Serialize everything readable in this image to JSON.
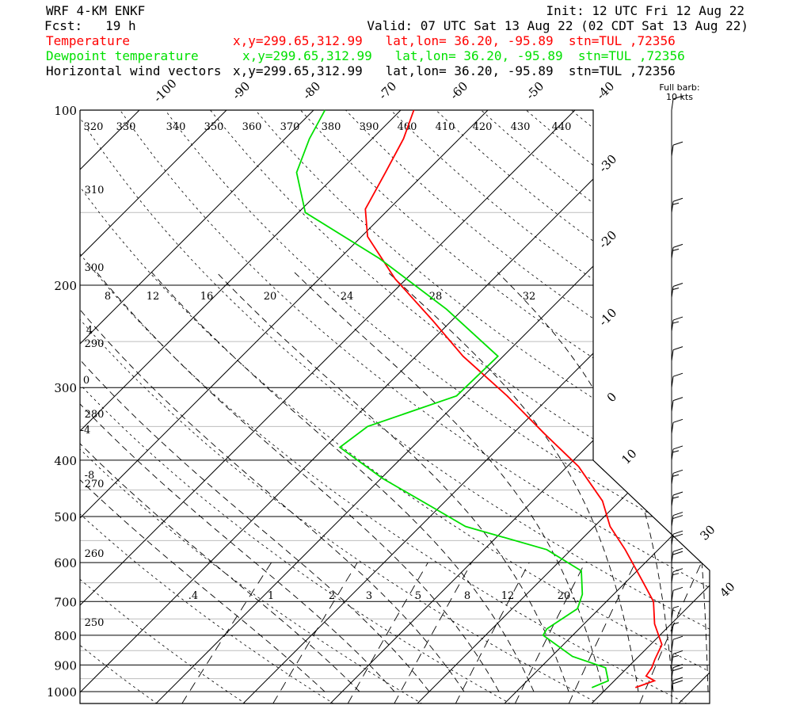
{
  "header": {
    "model": "WRF 4-KM ENKF",
    "fcst": "Fcst:   19 h",
    "init": "Init: 12 UTC Fri 12 Aug 22",
    "valid": "Valid: 07 UTC Sat 13 Aug 22 (02 CDT Sat 13 Aug 22)",
    "legend": [
      {
        "name": "Temperature",
        "info": "x,y=299.65,312.99   lat,lon= 36.20, -95.89  stn=TUL ,72356",
        "color": "#ff0000"
      },
      {
        "name": "Dewpoint temperature",
        "info": "x,y=299.65,312.99   lat,lon= 36.20, -95.89  stn=TUL ,72356",
        "color": "#00e000"
      },
      {
        "name": "Horizontal wind vectors",
        "info": "x,y=299.65,312.99   lat,lon= 36.20, -95.89  stn=TUL ,72356",
        "color": "#000000"
      }
    ],
    "barb_note_1": "Full barb:",
    "barb_note_2": "10 kts"
  },
  "chart_data": {
    "type": "skew-t log-p sounding",
    "pressure_axis": {
      "label_values": [
        100,
        200,
        300,
        400,
        500,
        600,
        700,
        800,
        900,
        1000
      ],
      "range_hPa": [
        1000,
        100
      ],
      "scale": "log"
    },
    "isotherm_labels": [
      "-100",
      "-90",
      "-80",
      "-70",
      "-60",
      "-50",
      "-40",
      "-30",
      "-20",
      "-10",
      "0",
      "10",
      "20",
      "30",
      "40"
    ],
    "dry_adiabat_labels": [
      "320",
      "330",
      "340",
      "350",
      "360",
      "370",
      "380",
      "390",
      "400",
      "410",
      "420",
      "430",
      "440",
      "310",
      "300",
      "290",
      "280",
      "270",
      "260",
      "250"
    ],
    "moist_adiabat_labels": [
      "8",
      "12",
      "16",
      "20",
      "24",
      "28",
      "32",
      "4",
      "0",
      "-4",
      "-8"
    ],
    "mixing_ratio_labels": [
      ".4",
      "1",
      "2",
      "3",
      "5",
      "8",
      "12",
      "20"
    ],
    "series": [
      {
        "name": "Temperature",
        "color": "#ff0000",
        "points_pT": [
          [
            984,
            23.2
          ],
          [
            958,
            24.6
          ],
          [
            940,
            23.1
          ],
          [
            910,
            22.8
          ],
          [
            880,
            22.2
          ],
          [
            830,
            21.3
          ],
          [
            765,
            18.1
          ],
          [
            700,
            15.4
          ],
          [
            640,
            11.4
          ],
          [
            570,
            6.2
          ],
          [
            520,
            1.8
          ],
          [
            470,
            -2.0
          ],
          [
            410,
            -8.7
          ],
          [
            360,
            -16.4
          ],
          [
            310,
            -25.0
          ],
          [
            265,
            -34.6
          ],
          [
            230,
            -42.2
          ],
          [
            195,
            -51.3
          ],
          [
            165,
            -59.3
          ],
          [
            148,
            -62.7
          ],
          [
            128,
            -64.6
          ],
          [
            112,
            -66.4
          ],
          [
            100,
            -68.5
          ]
        ]
      },
      {
        "name": "Dewpoint temperature",
        "color": "#00e000",
        "points_pT": [
          [
            984,
            18.2
          ],
          [
            958,
            19.3
          ],
          [
            910,
            17.5
          ],
          [
            870,
            12.4
          ],
          [
            800,
            6.6
          ],
          [
            780,
            6.3
          ],
          [
            720,
            7.5
          ],
          [
            680,
            6.4
          ],
          [
            620,
            3.6
          ],
          [
            570,
            -2.8
          ],
          [
            520,
            -14.8
          ],
          [
            480,
            -21.1
          ],
          [
            430,
            -29.8
          ],
          [
            380,
            -38.3
          ],
          [
            350,
            -37.5
          ],
          [
            310,
            -30.8
          ],
          [
            265,
            -30.6
          ],
          [
            220,
            -41.9
          ],
          [
            180,
            -55.4
          ],
          [
            150,
            -69.2
          ],
          [
            128,
            -74.8
          ],
          [
            112,
            -77.2
          ],
          [
            100,
            -78.7
          ]
        ]
      }
    ],
    "wind_barbs": [
      {
        "p": 100,
        "speed_kt": 10
      },
      {
        "p": 120,
        "speed_kt": 10
      },
      {
        "p": 150,
        "speed_kt": 15
      },
      {
        "p": 180,
        "speed_kt": 15
      },
      {
        "p": 210,
        "speed_kt": 15
      },
      {
        "p": 240,
        "speed_kt": 15
      },
      {
        "p": 270,
        "speed_kt": 10
      },
      {
        "p": 300,
        "speed_kt": 10
      },
      {
        "p": 330,
        "speed_kt": 10
      },
      {
        "p": 360,
        "speed_kt": 10
      },
      {
        "p": 400,
        "speed_kt": 15
      },
      {
        "p": 440,
        "speed_kt": 15
      },
      {
        "p": 480,
        "speed_kt": 15
      },
      {
        "p": 520,
        "speed_kt": 20
      },
      {
        "p": 560,
        "speed_kt": 20
      },
      {
        "p": 600,
        "speed_kt": 20
      },
      {
        "p": 650,
        "speed_kt": 15
      },
      {
        "p": 700,
        "speed_kt": 10
      },
      {
        "p": 750,
        "speed_kt": 5
      },
      {
        "p": 800,
        "speed_kt": 5
      },
      {
        "p": 850,
        "speed_kt": 10
      },
      {
        "p": 900,
        "speed_kt": 15
      },
      {
        "p": 950,
        "speed_kt": 20
      },
      {
        "p": 1000,
        "speed_kt": 20
      }
    ]
  }
}
